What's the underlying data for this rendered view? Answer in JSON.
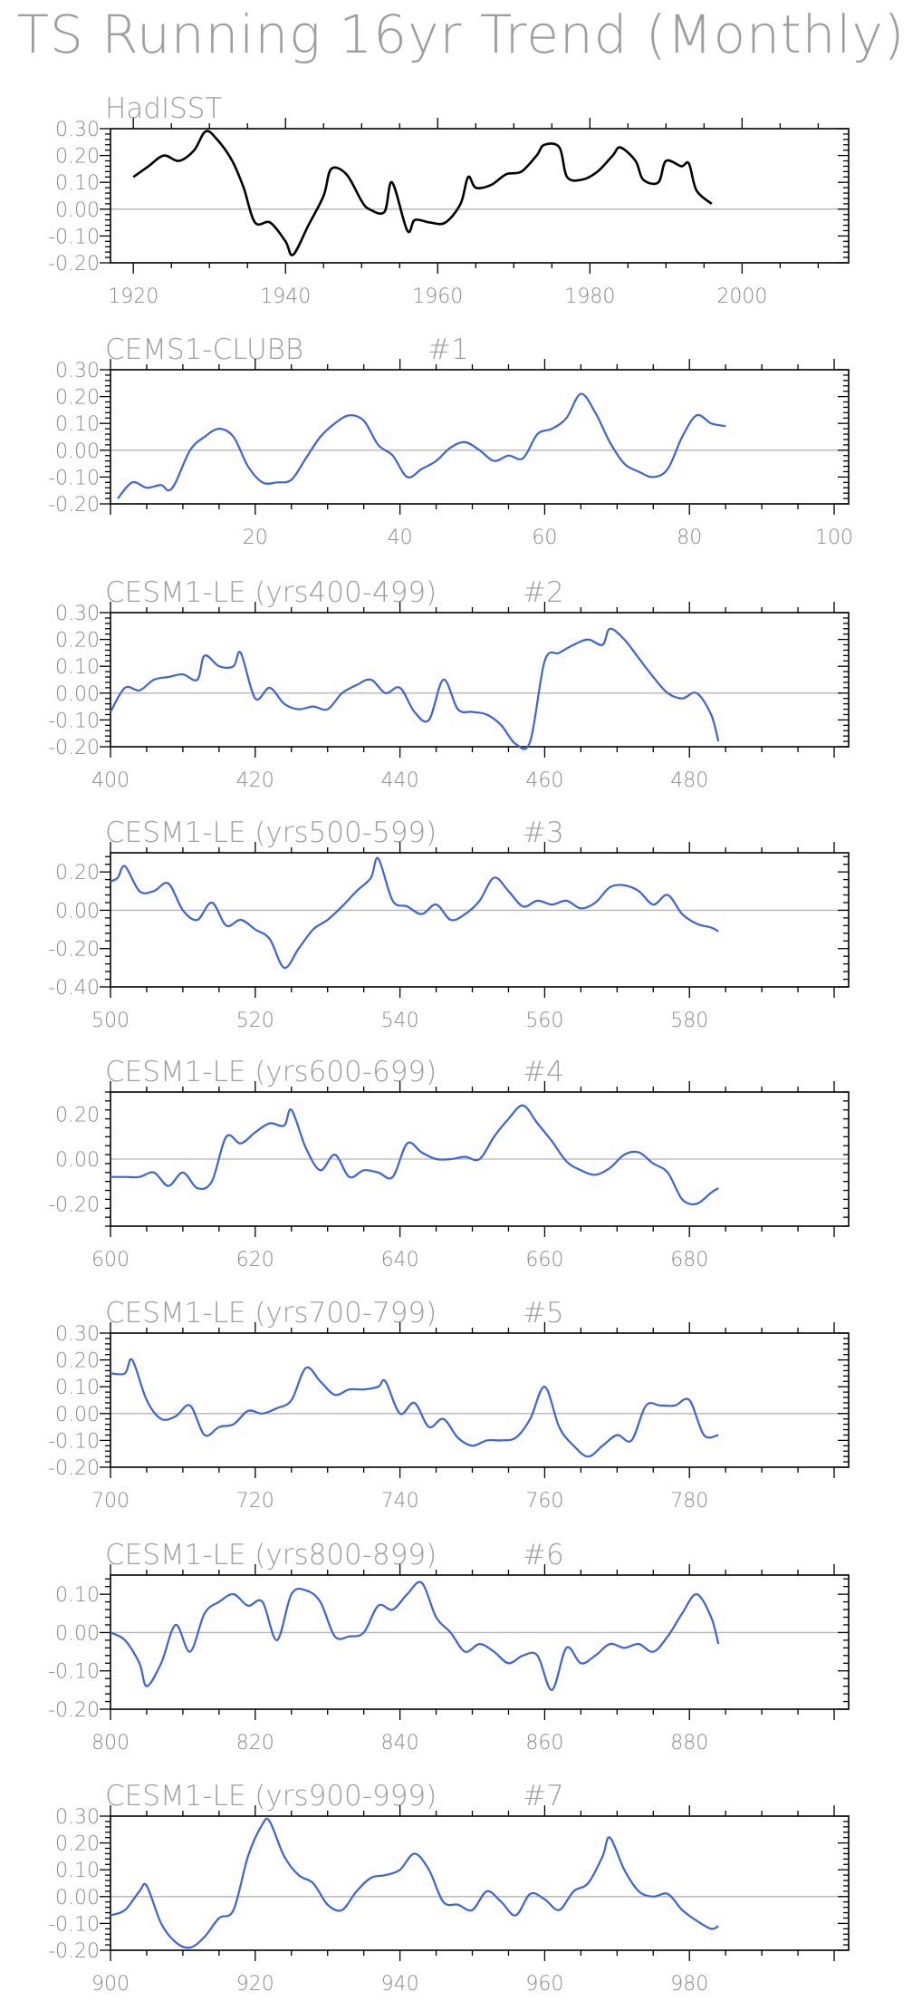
{
  "title": "TS Running 16yr Trend (Monthly)",
  "chart_data": [
    {
      "type": "line",
      "title": "HadISST",
      "title_suffix": "",
      "color": "#000000",
      "xlim": [
        1917,
        2014
      ],
      "ylim": [
        -0.2,
        0.3
      ],
      "xticks": [
        1920,
        1940,
        1960,
        1980,
        2000
      ],
      "yticks": [
        -0.2,
        -0.1,
        0.0,
        0.1,
        0.2,
        0.3
      ],
      "ytick_labels": [
        "-0.20",
        "-0.10",
        "0.00",
        "0.10",
        "0.20",
        "0.30"
      ],
      "series": [
        {
          "x": [
            1920,
            1922,
            1924,
            1926,
            1928,
            1929.5,
            1931,
            1933,
            1934.5,
            1936,
            1938,
            1940,
            1941,
            1943,
            1945,
            1946,
            1948,
            1950,
            1951,
            1953,
            1954,
            1956,
            1957,
            1959,
            1961,
            1963,
            1964,
            1965,
            1967,
            1969,
            1971,
            1973,
            1974,
            1976,
            1977,
            1979,
            1981,
            1983,
            1984,
            1986,
            1987,
            1989,
            1990,
            1992,
            1993,
            1994,
            1996
          ],
          "y": [
            0.12,
            0.16,
            0.2,
            0.18,
            0.22,
            0.29,
            0.26,
            0.18,
            0.08,
            -0.05,
            -0.05,
            -0.12,
            -0.17,
            -0.06,
            0.05,
            0.15,
            0.13,
            0.03,
            0.0,
            -0.01,
            0.1,
            -0.08,
            -0.04,
            -0.05,
            -0.05,
            0.02,
            0.12,
            0.08,
            0.09,
            0.13,
            0.14,
            0.2,
            0.24,
            0.23,
            0.12,
            0.11,
            0.14,
            0.2,
            0.23,
            0.18,
            0.11,
            0.1,
            0.18,
            0.16,
            0.17,
            0.07,
            0.02
          ]
        }
      ]
    },
    {
      "type": "line",
      "title": "CEMS1-CLUBB",
      "title_suffix": "#1",
      "color": "#3d63d9",
      "xlim": [
        0,
        102
      ],
      "ylim": [
        -0.2,
        0.3
      ],
      "xticks": [
        20,
        40,
        60,
        80,
        100
      ],
      "yticks": [
        -0.2,
        -0.1,
        0.0,
        0.1,
        0.2,
        0.3
      ],
      "ytick_labels": [
        "-0.20",
        "-0.10",
        "0.00",
        "0.10",
        "0.20",
        "0.30"
      ],
      "series": [
        {
          "x": [
            1,
            3,
            5,
            7,
            8,
            9,
            11,
            13,
            15,
            17,
            19,
            21,
            23,
            25,
            27,
            29,
            31,
            33,
            35,
            37,
            39,
            41,
            43,
            45,
            47,
            49,
            51,
            53,
            55,
            57,
            59,
            61,
            63,
            65,
            67,
            69,
            71,
            73,
            75,
            77,
            79,
            81,
            83,
            85
          ],
          "y": [
            -0.18,
            -0.12,
            -0.14,
            -0.13,
            -0.15,
            -0.12,
            0.0,
            0.05,
            0.08,
            0.05,
            -0.06,
            -0.12,
            -0.12,
            -0.11,
            -0.03,
            0.05,
            0.1,
            0.13,
            0.11,
            0.02,
            -0.02,
            -0.1,
            -0.07,
            -0.04,
            0.01,
            0.03,
            0.0,
            -0.04,
            -0.02,
            -0.03,
            0.06,
            0.08,
            0.12,
            0.21,
            0.14,
            0.03,
            -0.05,
            -0.08,
            -0.1,
            -0.07,
            0.05,
            0.13,
            0.1,
            0.09
          ]
        }
      ]
    },
    {
      "type": "line",
      "title": "CESM1-LE (yrs400-499)",
      "title_suffix": "#2",
      "color": "#3d63d9",
      "xlim": [
        400,
        502
      ],
      "ylim": [
        -0.2,
        0.3
      ],
      "xticks": [
        400,
        420,
        440,
        460,
        480
      ],
      "yticks": [
        -0.2,
        -0.1,
        0.0,
        0.1,
        0.2,
        0.3
      ],
      "ytick_labels": [
        "-0.20",
        "-0.10",
        "0.00",
        "0.10",
        "0.20",
        "0.30"
      ],
      "series": [
        {
          "x": [
            400,
            402,
            404,
            406,
            408,
            410,
            412,
            413,
            415,
            417,
            418,
            420,
            422,
            424,
            426,
            428,
            430,
            432,
            434,
            436,
            438,
            440,
            442,
            444,
            446,
            448,
            450,
            452,
            454,
            456,
            458,
            460,
            462,
            464,
            466,
            468,
            469,
            471,
            473,
            475,
            477,
            479,
            481,
            483,
            484
          ],
          "y": [
            -0.07,
            0.02,
            0.01,
            0.05,
            0.06,
            0.07,
            0.05,
            0.14,
            0.1,
            0.1,
            0.15,
            -0.02,
            0.02,
            -0.04,
            -0.06,
            -0.05,
            -0.06,
            0.0,
            0.03,
            0.05,
            0.0,
            0.02,
            -0.07,
            -0.1,
            0.05,
            -0.06,
            -0.07,
            -0.08,
            -0.12,
            -0.19,
            -0.18,
            0.12,
            0.15,
            0.18,
            0.2,
            0.18,
            0.24,
            0.2,
            0.13,
            0.06,
            0.0,
            -0.02,
            0.0,
            -0.08,
            -0.18
          ]
        }
      ]
    },
    {
      "type": "line",
      "title": "CESM1-LE (yrs500-599)",
      "title_suffix": "#3",
      "color": "#3d63d9",
      "xlim": [
        500,
        602
      ],
      "ylim": [
        -0.4,
        0.3
      ],
      "xticks": [
        500,
        520,
        540,
        560,
        580
      ],
      "yticks": [
        -0.4,
        -0.2,
        0.0,
        0.2
      ],
      "ytick_labels": [
        "-0.40",
        "-0.20",
        "0.00",
        "0.20"
      ],
      "series": [
        {
          "x": [
            500,
            501,
            502,
            504,
            506,
            508,
            510,
            512,
            514,
            516,
            518,
            520,
            522,
            524,
            526,
            528,
            530,
            532,
            534,
            536,
            537,
            539,
            541,
            543,
            545,
            547,
            549,
            551,
            553,
            555,
            557,
            559,
            561,
            563,
            565,
            567,
            569,
            571,
            573,
            575,
            577,
            579,
            581,
            583,
            584
          ],
          "y": [
            0.15,
            0.17,
            0.23,
            0.1,
            0.1,
            0.14,
            0.0,
            -0.05,
            0.04,
            -0.08,
            -0.05,
            -0.1,
            -0.15,
            -0.3,
            -0.2,
            -0.1,
            -0.05,
            0.02,
            0.1,
            0.17,
            0.27,
            0.05,
            0.02,
            -0.02,
            0.03,
            -0.05,
            -0.02,
            0.05,
            0.17,
            0.1,
            0.02,
            0.05,
            0.03,
            0.05,
            0.01,
            0.04,
            0.12,
            0.13,
            0.1,
            0.03,
            0.08,
            -0.02,
            -0.07,
            -0.09,
            -0.11
          ]
        }
      ]
    },
    {
      "type": "line",
      "title": "CESM1-LE (yrs600-699)",
      "title_suffix": "#4",
      "color": "#3d63d9",
      "xlim": [
        600,
        702
      ],
      "ylim": [
        -0.3,
        0.3
      ],
      "xticks": [
        600,
        620,
        640,
        660,
        680
      ],
      "yticks": [
        -0.2,
        0.0,
        0.2
      ],
      "ytick_labels": [
        "-0.20",
        "0.00",
        "0.20"
      ],
      "series": [
        {
          "x": [
            600,
            602,
            604,
            606,
            608,
            610,
            612,
            614,
            616,
            618,
            620,
            622,
            624,
            625,
            627,
            629,
            631,
            633,
            635,
            637,
            639,
            641,
            643,
            645,
            647,
            649,
            651,
            653,
            655,
            657,
            659,
            661,
            663,
            665,
            667,
            669,
            671,
            673,
            675,
            677,
            679,
            681,
            683,
            684
          ],
          "y": [
            -0.08,
            -0.08,
            -0.08,
            -0.06,
            -0.12,
            -0.06,
            -0.13,
            -0.1,
            0.1,
            0.07,
            0.12,
            0.16,
            0.15,
            0.22,
            0.05,
            -0.05,
            0.02,
            -0.08,
            -0.05,
            -0.06,
            -0.08,
            0.07,
            0.03,
            0.0,
            0.0,
            0.01,
            0.0,
            0.1,
            0.18,
            0.24,
            0.16,
            0.08,
            -0.01,
            -0.05,
            -0.07,
            -0.04,
            0.02,
            0.03,
            -0.02,
            -0.06,
            -0.18,
            -0.2,
            -0.15,
            -0.13
          ]
        }
      ]
    },
    {
      "type": "line",
      "title": "CESM1-LE (yrs700-799)",
      "title_suffix": "#5",
      "color": "#3d63d9",
      "xlim": [
        700,
        802
      ],
      "ylim": [
        -0.2,
        0.3
      ],
      "xticks": [
        700,
        720,
        740,
        760,
        780
      ],
      "yticks": [
        -0.2,
        -0.1,
        0.0,
        0.1,
        0.2,
        0.3
      ],
      "ytick_labels": [
        "-0.20",
        "-0.10",
        "0.00",
        "0.10",
        "0.20",
        "0.30"
      ],
      "series": [
        {
          "x": [
            700,
            702,
            703,
            705,
            707,
            709,
            711,
            713,
            715,
            717,
            719,
            721,
            723,
            725,
            727,
            729,
            731,
            733,
            735,
            737,
            738,
            740,
            742,
            744,
            746,
            748,
            750,
            752,
            754,
            756,
            758,
            760,
            762,
            764,
            766,
            768,
            770,
            772,
            774,
            776,
            778,
            780,
            782,
            784
          ],
          "y": [
            0.15,
            0.15,
            0.2,
            0.05,
            -0.02,
            -0.01,
            0.03,
            -0.08,
            -0.05,
            -0.04,
            0.01,
            0.0,
            0.02,
            0.05,
            0.17,
            0.12,
            0.07,
            0.09,
            0.09,
            0.1,
            0.12,
            0.0,
            0.04,
            -0.05,
            -0.02,
            -0.09,
            -0.12,
            -0.1,
            -0.1,
            -0.09,
            -0.02,
            0.1,
            -0.05,
            -0.12,
            -0.16,
            -0.12,
            -0.08,
            -0.1,
            0.03,
            0.03,
            0.03,
            0.05,
            -0.08,
            -0.08
          ]
        }
      ]
    },
    {
      "type": "line",
      "title": "CESM1-LE (yrs800-899)",
      "title_suffix": "#6",
      "color": "#3d63d9",
      "xlim": [
        800,
        902
      ],
      "ylim": [
        -0.2,
        0.15
      ],
      "xticks": [
        800,
        820,
        840,
        860,
        880
      ],
      "yticks": [
        -0.2,
        -0.1,
        0.0,
        0.1
      ],
      "ytick_labels": [
        "-0.20",
        "-0.10",
        "0.00",
        "0.10"
      ],
      "series": [
        {
          "x": [
            800,
            802,
            804,
            805,
            807,
            809,
            811,
            813,
            815,
            817,
            819,
            821,
            823,
            825,
            827,
            829,
            831,
            833,
            835,
            837,
            839,
            841,
            843,
            845,
            847,
            849,
            851,
            853,
            855,
            857,
            859,
            861,
            863,
            865,
            867,
            869,
            871,
            873,
            875,
            877,
            879,
            881,
            883,
            884
          ],
          "y": [
            0.0,
            -0.02,
            -0.08,
            -0.14,
            -0.08,
            0.02,
            -0.05,
            0.05,
            0.08,
            0.1,
            0.07,
            0.08,
            -0.02,
            0.1,
            0.11,
            0.08,
            -0.01,
            -0.01,
            0.0,
            0.07,
            0.06,
            0.1,
            0.13,
            0.04,
            0.0,
            -0.05,
            -0.03,
            -0.05,
            -0.08,
            -0.06,
            -0.06,
            -0.15,
            -0.04,
            -0.08,
            -0.06,
            -0.03,
            -0.04,
            -0.03,
            -0.05,
            -0.01,
            0.05,
            0.1,
            0.04,
            -0.03
          ]
        }
      ]
    },
    {
      "type": "line",
      "title": "CESM1-LE (yrs900-999)",
      "title_suffix": "#7",
      "color": "#3d63d9",
      "xlim": [
        900,
        1002
      ],
      "ylim": [
        -0.2,
        0.3
      ],
      "xticks": [
        900,
        920,
        940,
        960,
        980
      ],
      "yticks": [
        -0.2,
        -0.1,
        0.0,
        0.1,
        0.2,
        0.3
      ],
      "ytick_labels": [
        "-0.20",
        "-0.10",
        "0.00",
        "0.10",
        "0.20",
        "0.30"
      ],
      "series": [
        {
          "x": [
            900,
            902,
            904,
            905,
            907,
            909,
            911,
            913,
            915,
            917,
            919,
            921,
            922,
            924,
            926,
            928,
            930,
            932,
            934,
            936,
            938,
            940,
            942,
            944,
            946,
            948,
            950,
            952,
            954,
            956,
            958,
            960,
            962,
            964,
            966,
            968,
            969,
            971,
            973,
            975,
            977,
            979,
            981,
            983,
            984
          ],
          "y": [
            -0.07,
            -0.05,
            0.02,
            0.04,
            -0.1,
            -0.17,
            -0.19,
            -0.15,
            -0.08,
            -0.05,
            0.15,
            0.27,
            0.28,
            0.15,
            0.08,
            0.05,
            -0.03,
            -0.05,
            0.02,
            0.07,
            0.08,
            0.1,
            0.16,
            0.1,
            -0.02,
            -0.03,
            -0.05,
            0.02,
            -0.02,
            -0.07,
            0.01,
            -0.01,
            -0.05,
            0.02,
            0.05,
            0.15,
            0.22,
            0.1,
            0.02,
            0.0,
            0.01,
            -0.05,
            -0.09,
            -0.12,
            -0.11
          ]
        }
      ]
    }
  ]
}
